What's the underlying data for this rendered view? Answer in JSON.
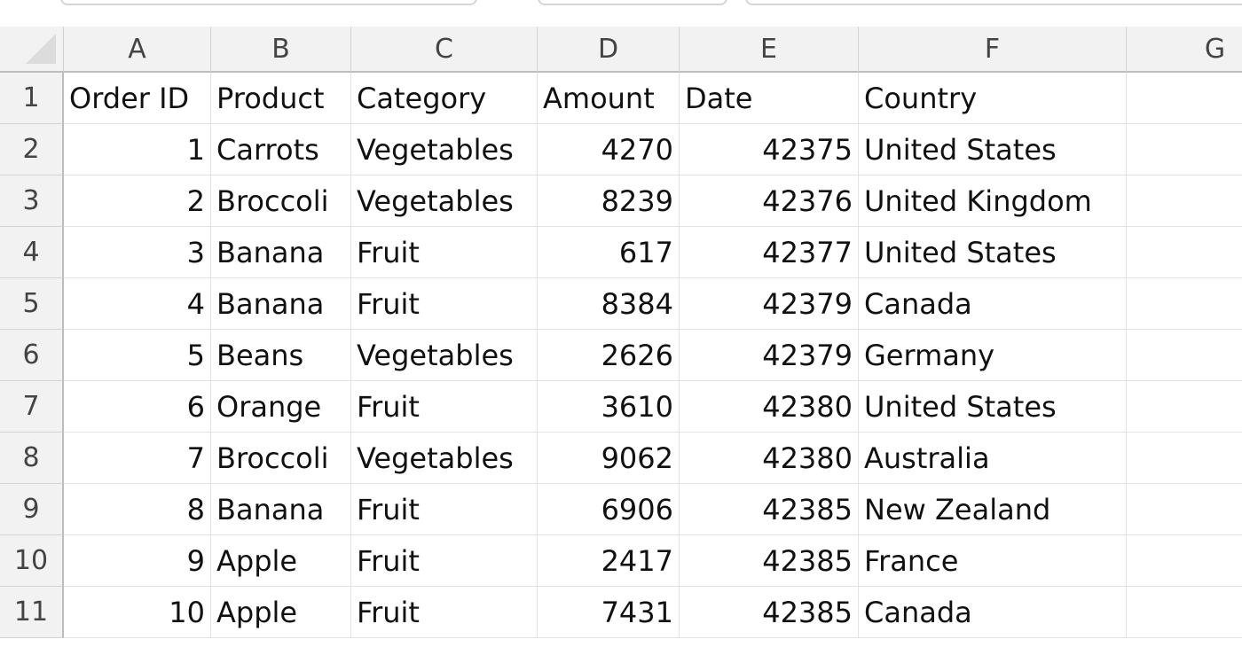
{
  "columns": [
    "A",
    "B",
    "C",
    "D",
    "E",
    "F",
    "G"
  ],
  "rows": [
    {
      "row": "1",
      "cells": [
        "Order ID",
        "Product",
        "Category",
        "Amount",
        "Date",
        "Country",
        ""
      ]
    },
    {
      "row": "2",
      "cells": [
        "1",
        "Carrots",
        "Vegetables",
        "4270",
        "42375",
        "United States",
        ""
      ]
    },
    {
      "row": "3",
      "cells": [
        "2",
        "Broccoli",
        "Vegetables",
        "8239",
        "42376",
        "United Kingdom",
        ""
      ]
    },
    {
      "row": "4",
      "cells": [
        "3",
        "Banana",
        "Fruit",
        "617",
        "42377",
        "United States",
        ""
      ]
    },
    {
      "row": "5",
      "cells": [
        "4",
        "Banana",
        "Fruit",
        "8384",
        "42379",
        "Canada",
        ""
      ]
    },
    {
      "row": "6",
      "cells": [
        "5",
        "Beans",
        "Vegetables",
        "2626",
        "42379",
        "Germany",
        ""
      ]
    },
    {
      "row": "7",
      "cells": [
        "6",
        "Orange",
        "Fruit",
        "3610",
        "42380",
        "United States",
        ""
      ]
    },
    {
      "row": "8",
      "cells": [
        "7",
        "Broccoli",
        "Vegetables",
        "9062",
        "42380",
        "Australia",
        ""
      ]
    },
    {
      "row": "9",
      "cells": [
        "8",
        "Banana",
        "Fruit",
        "6906",
        "42385",
        "New Zealand",
        ""
      ]
    },
    {
      "row": "10",
      "cells": [
        "9",
        "Apple",
        "Fruit",
        "2417",
        "42385",
        "France",
        ""
      ]
    },
    {
      "row": "11",
      "cells": [
        "10",
        "Apple",
        "Fruit",
        "7431",
        "42385",
        "Canada",
        ""
      ]
    }
  ]
}
